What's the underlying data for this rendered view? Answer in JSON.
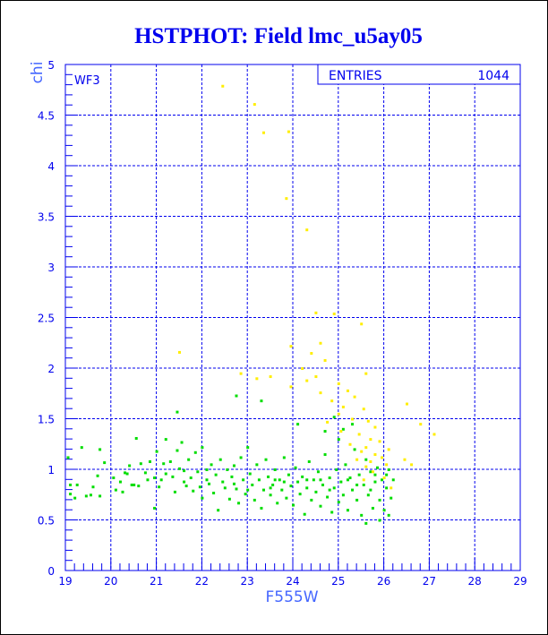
{
  "chart_data": {
    "type": "scatter",
    "title": "HSTPHOT: Field lmc_u5ay05",
    "xlabel": "F555W",
    "ylabel": "chi",
    "xlim": [
      19,
      29
    ],
    "ylim": [
      0,
      5
    ],
    "x_ticks": [
      "19",
      "20",
      "21",
      "22",
      "23",
      "24",
      "25",
      "26",
      "27",
      "28",
      "29"
    ],
    "y_ticks": [
      "0",
      "0.5",
      "1",
      "1.5",
      "2",
      "2.5",
      "3",
      "3.5",
      "4",
      "4.5",
      "5"
    ],
    "grid": true,
    "annotation": "WF3",
    "stats": {
      "label": "ENTRIES",
      "value": "1044"
    },
    "colors": {
      "frame": "#0000ee",
      "green": "#00dd00",
      "yellow": "#ffee00"
    },
    "series": [
      {
        "color": "green",
        "points": [
          [
            19.05,
            1.12
          ],
          [
            19.1,
            0.76
          ],
          [
            19.1,
            0.85
          ],
          [
            19.2,
            0.72
          ],
          [
            19.25,
            0.85
          ],
          [
            19.35,
            1.22
          ],
          [
            19.45,
            0.74
          ],
          [
            19.55,
            0.75
          ],
          [
            19.6,
            0.83
          ],
          [
            19.7,
            0.94
          ],
          [
            19.75,
            1.2
          ],
          [
            19.75,
            0.74
          ],
          [
            19.85,
            1.07
          ],
          [
            20.05,
            0.92
          ],
          [
            20.1,
            0.8
          ],
          [
            20.2,
            0.88
          ],
          [
            20.25,
            0.78
          ],
          [
            20.3,
            0.97
          ],
          [
            20.35,
            0.96
          ],
          [
            20.4,
            1.04
          ],
          [
            20.45,
            0.85
          ],
          [
            20.5,
            0.85
          ],
          [
            20.55,
            1.31
          ],
          [
            20.6,
            0.84
          ],
          [
            20.65,
            1.06
          ],
          [
            20.75,
            0.97
          ],
          [
            20.8,
            0.9
          ],
          [
            20.85,
            1.08
          ],
          [
            20.95,
            0.62
          ],
          [
            20.95,
            0.92
          ],
          [
            21.0,
            1.18
          ],
          [
            21.05,
            0.83
          ],
          [
            21.1,
            0.9
          ],
          [
            21.15,
            1.06
          ],
          [
            21.2,
            0.96
          ],
          [
            21.2,
            1.3
          ],
          [
            21.3,
            1.08
          ],
          [
            21.35,
            0.93
          ],
          [
            21.4,
            0.78
          ],
          [
            21.45,
            1.19
          ],
          [
            21.5,
            1.01
          ],
          [
            21.55,
            1.27
          ],
          [
            21.6,
            0.99
          ],
          [
            21.65,
            0.84
          ],
          [
            21.7,
            1.1
          ],
          [
            21.75,
            0.92
          ],
          [
            21.8,
            0.79
          ],
          [
            21.85,
            1.17
          ],
          [
            21.9,
            0.98
          ],
          [
            21.95,
            0.83
          ],
          [
            22.0,
            1.22
          ],
          [
            22.0,
            0.72
          ],
          [
            22.1,
            1.0
          ],
          [
            22.15,
            0.86
          ],
          [
            22.2,
            1.05
          ],
          [
            22.25,
            0.77
          ],
          [
            22.3,
            0.95
          ],
          [
            22.35,
            0.6
          ],
          [
            22.4,
            1.1
          ],
          [
            22.45,
            0.88
          ],
          [
            22.5,
            0.82
          ],
          [
            22.55,
            1.0
          ],
          [
            22.6,
            0.71
          ],
          [
            22.65,
            0.93
          ],
          [
            22.7,
            1.04
          ],
          [
            22.75,
            0.81
          ],
          [
            22.8,
            0.67
          ],
          [
            22.85,
            1.12
          ],
          [
            22.9,
            0.9
          ],
          [
            22.95,
            0.76
          ],
          [
            23.0,
            1.22
          ],
          [
            23.05,
            0.96
          ],
          [
            23.1,
            0.85
          ],
          [
            23.15,
            0.7
          ],
          [
            23.2,
            1.05
          ],
          [
            23.25,
            0.9
          ],
          [
            23.3,
            0.62
          ],
          [
            23.35,
            0.8
          ],
          [
            23.4,
            1.1
          ],
          [
            23.45,
            0.93
          ],
          [
            23.5,
            0.75
          ],
          [
            23.55,
            0.85
          ],
          [
            23.6,
            1.0
          ],
          [
            23.65,
            0.67
          ],
          [
            23.7,
            0.9
          ],
          [
            23.75,
            0.8
          ],
          [
            23.8,
            1.12
          ],
          [
            23.85,
            0.72
          ],
          [
            23.9,
            0.95
          ],
          [
            23.95,
            0.84
          ],
          [
            24.0,
            0.65
          ],
          [
            24.05,
            1.02
          ],
          [
            24.1,
            0.88
          ],
          [
            24.15,
            0.76
          ],
          [
            24.2,
            0.93
          ],
          [
            24.25,
            0.56
          ],
          [
            24.3,
            0.82
          ],
          [
            24.35,
            1.08
          ],
          [
            24.4,
            0.7
          ],
          [
            24.45,
            0.9
          ],
          [
            24.5,
            0.78
          ],
          [
            24.55,
            0.98
          ],
          [
            24.6,
            0.64
          ],
          [
            24.65,
            0.85
          ],
          [
            24.7,
            1.15
          ],
          [
            24.75,
            0.73
          ],
          [
            24.8,
            0.92
          ],
          [
            24.85,
            0.58
          ],
          [
            24.9,
            0.82
          ],
          [
            24.95,
            1.0
          ],
          [
            25.0,
            0.68
          ],
          [
            25.0,
            1.3
          ],
          [
            25.05,
            0.88
          ],
          [
            25.1,
            0.75
          ],
          [
            25.15,
            1.05
          ],
          [
            25.2,
            0.6
          ],
          [
            25.25,
            0.92
          ],
          [
            25.3,
            0.8
          ],
          [
            25.35,
            1.2
          ],
          [
            25.4,
            0.7
          ],
          [
            25.45,
            0.95
          ],
          [
            25.5,
            0.55
          ],
          [
            25.55,
            0.85
          ],
          [
            25.6,
            1.1
          ],
          [
            25.65,
            0.75
          ],
          [
            25.7,
            0.98
          ],
          [
            25.75,
            0.62
          ],
          [
            25.8,
            0.88
          ],
          [
            25.85,
            1.02
          ],
          [
            25.9,
            0.7
          ],
          [
            25.95,
            0.9
          ],
          [
            26.0,
            0.6
          ],
          [
            26.05,
            0.82
          ],
          [
            26.1,
            1.0
          ],
          [
            26.15,
            0.72
          ],
          [
            26.2,
            0.9
          ],
          [
            26.1,
            0.55
          ],
          [
            25.9,
            0.5
          ],
          [
            25.6,
            0.47
          ],
          [
            24.1,
            1.45
          ],
          [
            23.3,
            1.68
          ],
          [
            22.75,
            1.73
          ],
          [
            21.45,
            1.57
          ],
          [
            24.7,
            1.38
          ],
          [
            25.3,
            1.45
          ],
          [
            24.9,
            1.52
          ],
          [
            25.1,
            1.4
          ],
          [
            23.6,
            0.9
          ],
          [
            23.0,
            0.8
          ],
          [
            24.6,
            0.9
          ],
          [
            25.8,
            0.95
          ],
          [
            25.4,
            0.85
          ],
          [
            24.3,
            0.9
          ],
          [
            23.8,
            0.88
          ],
          [
            22.7,
            0.86
          ],
          [
            25.7,
            0.8
          ],
          [
            26.05,
            0.95
          ],
          [
            25.2,
            0.9
          ],
          [
            24.8,
            0.8
          ],
          [
            23.5,
            0.82
          ],
          [
            22.1,
            0.9
          ],
          [
            21.6,
            0.88
          ]
        ]
      },
      {
        "color": "yellow",
        "points": [
          [
            22.45,
            4.79
          ],
          [
            23.15,
            4.61
          ],
          [
            23.35,
            4.33
          ],
          [
            23.9,
            4.34
          ],
          [
            23.85,
            3.68
          ],
          [
            24.3,
            3.37
          ],
          [
            24.9,
            2.54
          ],
          [
            24.5,
            2.55
          ],
          [
            25.5,
            2.44
          ],
          [
            24.6,
            2.25
          ],
          [
            21.5,
            2.16
          ],
          [
            24.7,
            2.08
          ],
          [
            24.2,
            2.0
          ],
          [
            24.5,
            1.92
          ],
          [
            25.6,
            1.95
          ],
          [
            24.3,
            1.88
          ],
          [
            25.0,
            1.85
          ],
          [
            23.95,
            1.82
          ],
          [
            25.2,
            1.78
          ],
          [
            24.6,
            1.76
          ],
          [
            25.35,
            1.72
          ],
          [
            23.5,
            1.92
          ],
          [
            23.2,
            1.9
          ],
          [
            24.85,
            1.68
          ],
          [
            25.1,
            1.62
          ],
          [
            26.5,
            1.65
          ],
          [
            25.55,
            1.6
          ],
          [
            25.0,
            1.55
          ],
          [
            25.3,
            1.5
          ],
          [
            24.75,
            1.47
          ],
          [
            25.65,
            1.48
          ],
          [
            26.8,
            1.45
          ],
          [
            25.8,
            1.42
          ],
          [
            25.05,
            1.38
          ],
          [
            25.45,
            1.35
          ],
          [
            25.7,
            1.3
          ],
          [
            25.9,
            1.28
          ],
          [
            25.25,
            1.25
          ],
          [
            25.6,
            1.22
          ],
          [
            26.1,
            1.2
          ],
          [
            25.5,
            1.18
          ],
          [
            25.8,
            1.15
          ],
          [
            25.95,
            1.12
          ],
          [
            25.4,
            1.1
          ],
          [
            25.7,
            1.08
          ],
          [
            26.05,
            1.05
          ],
          [
            25.6,
            1.03
          ],
          [
            26.45,
            1.1
          ],
          [
            27.1,
            1.35
          ],
          [
            26.6,
            1.05
          ],
          [
            25.75,
            0.98
          ],
          [
            26.0,
            0.92
          ],
          [
            25.55,
            0.9
          ],
          [
            26.15,
            0.82
          ],
          [
            23.95,
            2.22
          ],
          [
            24.4,
            2.15
          ],
          [
            22.85,
            1.95
          ]
        ]
      }
    ]
  }
}
